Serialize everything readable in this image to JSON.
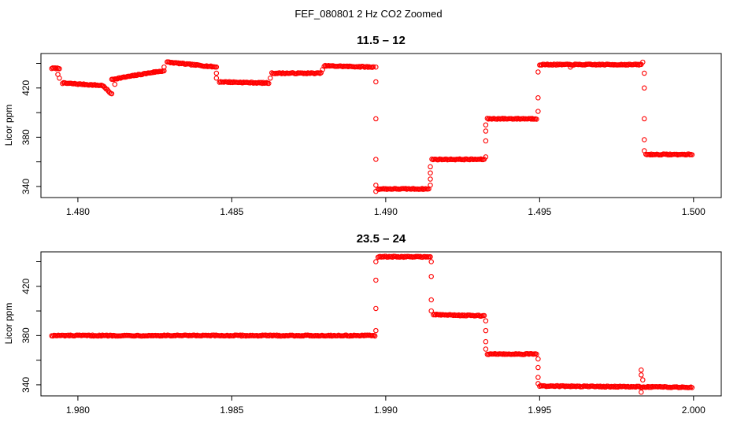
{
  "figure": {
    "title": "FEF_080801  2 Hz CO2 Zoomed"
  },
  "style": {
    "point_color": "#ff0000",
    "axis_color": "#000000",
    "background": "#ffffff"
  },
  "chart_data": [
    {
      "type": "scatter",
      "title": "11.5 – 12",
      "xlabel": "",
      "ylabel": "Licor ppm",
      "xlim": [
        1.4788,
        1.5009
      ],
      "ylim": [
        331,
        448
      ],
      "x_ticks": [
        1.48,
        1.485,
        1.49,
        1.495,
        1.5
      ],
      "x_tick_labels": [
        "1.480",
        "1.485",
        "1.490",
        "1.495",
        "1.500"
      ],
      "y_ticks": [
        340,
        360,
        380,
        400,
        420,
        440
      ],
      "y_tick_labels": [
        "340",
        "",
        "380",
        "",
        "420",
        ""
      ],
      "grid": false,
      "legend": "none",
      "series": [
        {
          "marker": "open-circle",
          "segments": [
            {
              "x0": 1.47915,
              "x1": 1.4794,
              "y0": 436,
              "y1": 436
            },
            {
              "x0": 1.4795,
              "x1": 1.4808,
              "y0": 424,
              "y1": 422
            },
            {
              "x0": 1.4808,
              "x1": 1.4811,
              "y0": 422,
              "y1": 415
            },
            {
              "x0": 1.4811,
              "x1": 1.4825,
              "y0": 427,
              "y1": 433
            },
            {
              "x0": 1.4825,
              "x1": 1.4828,
              "y0": 433,
              "y1": 434
            },
            {
              "x0": 1.4829,
              "x1": 1.4845,
              "y0": 441,
              "y1": 437
            },
            {
              "x0": 1.4846,
              "x1": 1.4862,
              "y0": 425,
              "y1": 424
            },
            {
              "x0": 1.4863,
              "x1": 1.4879,
              "y0": 432,
              "y1": 432
            },
            {
              "x0": 1.488,
              "x1": 1.4896,
              "y0": 438,
              "y1": 437
            },
            {
              "x0": 1.48975,
              "x1": 1.4914,
              "y0": 338,
              "y1": 338
            },
            {
              "x0": 1.4915,
              "x1": 1.4932,
              "y0": 362,
              "y1": 362
            },
            {
              "x0": 1.4933,
              "x1": 1.4949,
              "y0": 395,
              "y1": 395
            },
            {
              "x0": 1.495,
              "x1": 1.4983,
              "y0": 439,
              "y1": 439
            },
            {
              "x0": 1.49845,
              "x1": 1.49995,
              "y0": 366,
              "y1": 366
            }
          ],
          "transition_points": [
            {
              "x": 1.47935,
              "y": 431
            },
            {
              "x": 1.4794,
              "y": 428
            },
            {
              "x": 1.4812,
              "y": 423
            },
            {
              "x": 1.4828,
              "y": 437
            },
            {
              "x": 1.4845,
              "y": 432
            },
            {
              "x": 1.4845,
              "y": 428
            },
            {
              "x": 1.48625,
              "y": 428
            },
            {
              "x": 1.48795,
              "y": 435
            },
            {
              "x": 1.48968,
              "y": 437
            },
            {
              "x": 1.48968,
              "y": 425
            },
            {
              "x": 1.48968,
              "y": 395
            },
            {
              "x": 1.48968,
              "y": 362
            },
            {
              "x": 1.48968,
              "y": 341
            },
            {
              "x": 1.48968,
              "y": 336
            },
            {
              "x": 1.49145,
              "y": 341
            },
            {
              "x": 1.49145,
              "y": 346
            },
            {
              "x": 1.49145,
              "y": 351
            },
            {
              "x": 1.49145,
              "y": 356
            },
            {
              "x": 1.49325,
              "y": 364
            },
            {
              "x": 1.49325,
              "y": 377
            },
            {
              "x": 1.49325,
              "y": 385
            },
            {
              "x": 1.49325,
              "y": 390
            },
            {
              "x": 1.49495,
              "y": 401
            },
            {
              "x": 1.49495,
              "y": 412
            },
            {
              "x": 1.49495,
              "y": 433
            },
            {
              "x": 1.49835,
              "y": 441
            },
            {
              "x": 1.4984,
              "y": 432
            },
            {
              "x": 1.4984,
              "y": 420
            },
            {
              "x": 1.4984,
              "y": 395
            },
            {
              "x": 1.4984,
              "y": 378
            },
            {
              "x": 1.4984,
              "y": 369
            },
            {
              "x": 1.496,
              "y": 437
            }
          ]
        }
      ]
    },
    {
      "type": "scatter",
      "title": "23.5 – 24",
      "xlabel": "",
      "ylabel": "Licor ppm",
      "xlim": [
        1.9788,
        2.0009
      ],
      "ylim": [
        331,
        448
      ],
      "x_ticks": [
        1.98,
        1.985,
        1.99,
        1.995,
        2.0
      ],
      "x_tick_labels": [
        "1.980",
        "1.985",
        "1.990",
        "1.995",
        "2.000"
      ],
      "y_ticks": [
        340,
        360,
        380,
        400,
        420,
        440
      ],
      "y_tick_labels": [
        "340",
        "",
        "380",
        "",
        "420",
        ""
      ],
      "grid": false,
      "legend": "none",
      "series": [
        {
          "marker": "open-circle",
          "segments": [
            {
              "x0": 1.97915,
              "x1": 1.98965,
              "y0": 380,
              "y1": 380
            },
            {
              "x0": 1.98975,
              "x1": 1.99145,
              "y0": 444,
              "y1": 444
            },
            {
              "x0": 1.99155,
              "x1": 1.9932,
              "y0": 397,
              "y1": 396
            },
            {
              "x0": 1.9933,
              "x1": 1.9949,
              "y0": 365,
              "y1": 365
            },
            {
              "x0": 1.995,
              "x1": 1.99995,
              "y0": 339,
              "y1": 338
            }
          ],
          "transition_points": [
            {
              "x": 1.98968,
              "y": 384
            },
            {
              "x": 1.98968,
              "y": 402
            },
            {
              "x": 1.98968,
              "y": 425
            },
            {
              "x": 1.98968,
              "y": 440
            },
            {
              "x": 1.99148,
              "y": 440
            },
            {
              "x": 1.99148,
              "y": 428
            },
            {
              "x": 1.99148,
              "y": 409
            },
            {
              "x": 1.99148,
              "y": 400
            },
            {
              "x": 1.99325,
              "y": 392
            },
            {
              "x": 1.99325,
              "y": 384
            },
            {
              "x": 1.99325,
              "y": 375
            },
            {
              "x": 1.99325,
              "y": 369
            },
            {
              "x": 1.99495,
              "y": 361
            },
            {
              "x": 1.99495,
              "y": 354
            },
            {
              "x": 1.99495,
              "y": 346
            },
            {
              "x": 1.99495,
              "y": 341
            },
            {
              "x": 1.9983,
              "y": 352
            },
            {
              "x": 1.9983,
              "y": 348
            },
            {
              "x": 1.99835,
              "y": 344
            },
            {
              "x": 1.9983,
              "y": 334
            }
          ]
        }
      ]
    }
  ]
}
